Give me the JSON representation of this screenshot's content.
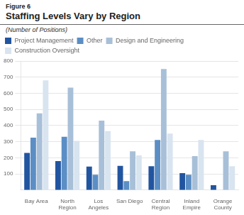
{
  "chart_data": {
    "type": "bar",
    "title": "Staffing Levels Vary by Region",
    "subtitle": "(Number of Positions)",
    "annotations": [
      "Figure 6"
    ],
    "categories": [
      "Bay Area",
      "North\nRegion",
      "Los\nAngeles",
      "San Diego",
      "Central\nRegion",
      "Inland\nEmpire",
      "Orange\nCounty"
    ],
    "series": [
      {
        "name": "Project Management",
        "color": "#2255A0",
        "values": [
          230,
          180,
          145,
          150,
          148,
          105,
          30
        ]
      },
      {
        "name": "Other",
        "color": "#5B8EC4",
        "values": [
          325,
          330,
          95,
          55,
          310,
          95,
          0
        ]
      },
      {
        "name": "Design and Engineering",
        "color": "#A8BFD8",
        "values": [
          475,
          635,
          430,
          240,
          750,
          210,
          240
        ]
      },
      {
        "name": "Construction Oversight",
        "color": "#D8E4EF",
        "values": [
          680,
          305,
          365,
          215,
          350,
          310,
          148
        ]
      }
    ],
    "ylim": [
      0,
      800
    ],
    "yticks": [
      100,
      200,
      300,
      400,
      500,
      600,
      700,
      800
    ],
    "grid": true,
    "legend": "upper left"
  }
}
